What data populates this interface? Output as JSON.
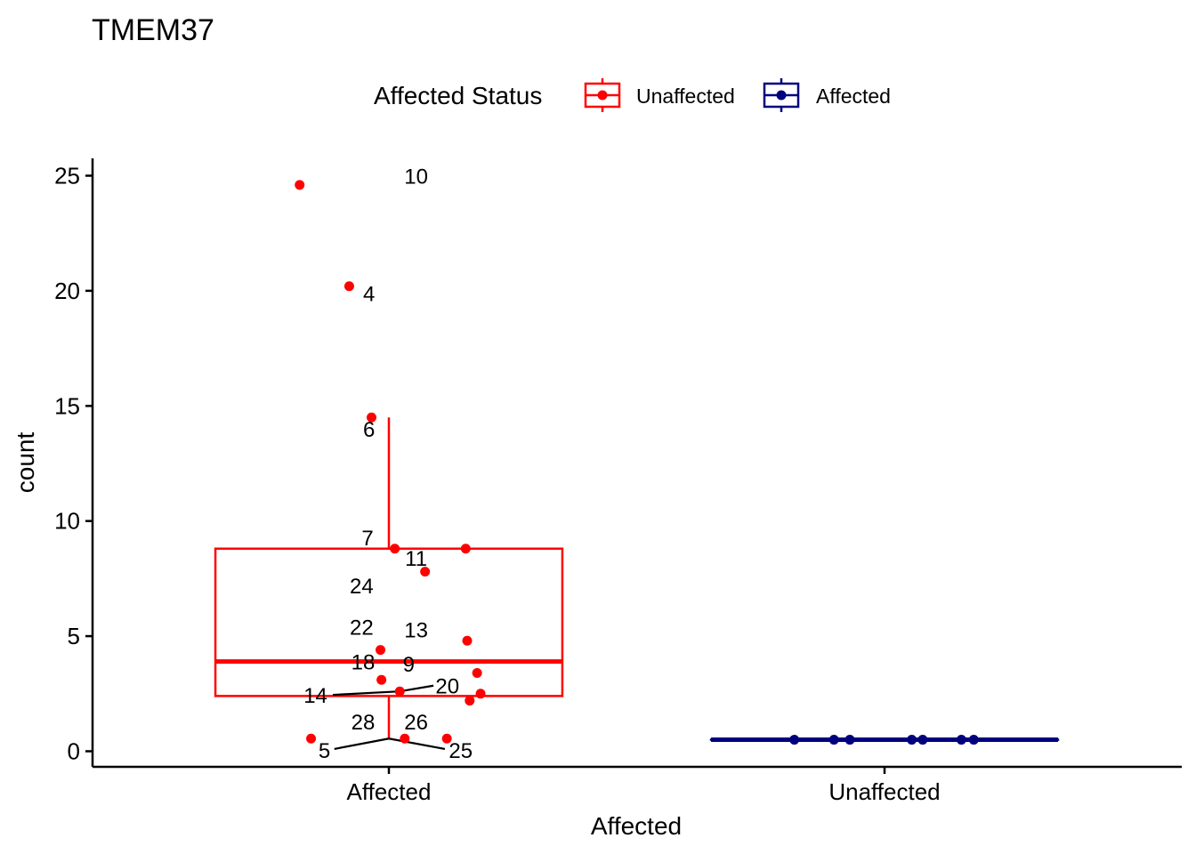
{
  "chart_data": {
    "type": "boxplot",
    "title": "TMEM37",
    "xlabel": "Affected",
    "ylabel": "count",
    "ylim": [
      -0.6,
      25.8
    ],
    "yticks": [
      0,
      5,
      10,
      15,
      20,
      25
    ],
    "categories": [
      "Affected",
      "Unaffected"
    ],
    "grid": false,
    "legend": {
      "title": "Affected Status",
      "position": "top",
      "entries": [
        {
          "name": "Unaffected",
          "color": "#ff0000"
        },
        {
          "name": "Affected",
          "color": "#00007f"
        }
      ]
    },
    "boxes": [
      {
        "category": "Affected",
        "color": "#ff0000",
        "q1": 2.4,
        "median": 3.9,
        "q3": 8.8,
        "whisker_low": 0.5,
        "whisker_high": 14.5
      },
      {
        "category": "Unaffected",
        "color": "#00007f",
        "q1": 0.5,
        "median": 0.5,
        "q3": 0.5,
        "whisker_low": 0.5,
        "whisker_high": 0.5
      }
    ],
    "points": [
      {
        "category": "Affected",
        "jitter": -0.18,
        "y": 24.6
      },
      {
        "category": "Affected",
        "jitter": -0.08,
        "y": 20.2
      },
      {
        "category": "Affected",
        "jitter": -0.035,
        "y": 14.5
      },
      {
        "category": "Affected",
        "jitter": 0.012,
        "y": 8.8
      },
      {
        "category": "Affected",
        "jitter": 0.155,
        "y": 8.8
      },
      {
        "category": "Affected",
        "jitter": 0.073,
        "y": 7.8
      },
      {
        "category": "Affected",
        "jitter": 0.158,
        "y": 4.8
      },
      {
        "category": "Affected",
        "jitter": -0.017,
        "y": 4.4
      },
      {
        "category": "Affected",
        "jitter": 0.178,
        "y": 3.4
      },
      {
        "category": "Affected",
        "jitter": -0.015,
        "y": 3.1
      },
      {
        "category": "Affected",
        "jitter": 0.022,
        "y": 2.6
      },
      {
        "category": "Affected",
        "jitter": 0.185,
        "y": 2.5
      },
      {
        "category": "Affected",
        "jitter": 0.163,
        "y": 2.2
      },
      {
        "category": "Affected",
        "jitter": -0.157,
        "y": 0.55
      },
      {
        "category": "Affected",
        "jitter": 0.032,
        "y": 0.55
      },
      {
        "category": "Affected",
        "jitter": 0.117,
        "y": 0.55
      },
      {
        "category": "Unaffected",
        "jitter": -0.182,
        "y": 0.5
      },
      {
        "category": "Unaffected",
        "jitter": -0.102,
        "y": 0.5
      },
      {
        "category": "Unaffected",
        "jitter": -0.07,
        "y": 0.5
      },
      {
        "category": "Unaffected",
        "jitter": 0.055,
        "y": 0.5
      },
      {
        "category": "Unaffected",
        "jitter": 0.077,
        "y": 0.5
      },
      {
        "category": "Unaffected",
        "jitter": 0.155,
        "y": 0.5
      },
      {
        "category": "Unaffected",
        "jitter": 0.18,
        "y": 0.5
      }
    ],
    "labels": [
      {
        "text": "10",
        "category": "Affected",
        "jitter": 0.055,
        "y": 25.0,
        "lx": 0.055,
        "ly": 25.0
      },
      {
        "text": "4",
        "category": "Affected",
        "jitter": -0.04,
        "y": 19.9,
        "lx": -0.04,
        "ly": 19.9
      },
      {
        "text": "6",
        "category": "Affected",
        "jitter": -0.04,
        "y": 14.0,
        "lx": -0.04,
        "ly": 14.0
      },
      {
        "text": "7",
        "category": "Affected",
        "jitter": -0.043,
        "y": 9.3,
        "lx": -0.043,
        "ly": 9.3
      },
      {
        "text": "11",
        "category": "Affected",
        "jitter": 0.055,
        "y": 8.4,
        "lx": 0.055,
        "ly": 8.4
      },
      {
        "text": "24",
        "category": "Affected",
        "jitter": -0.055,
        "y": 7.2,
        "lx": -0.055,
        "ly": 7.2
      },
      {
        "text": "22",
        "category": "Affected",
        "jitter": -0.055,
        "y": 5.4,
        "lx": -0.055,
        "ly": 5.4
      },
      {
        "text": "13",
        "category": "Affected",
        "jitter": 0.055,
        "y": 5.3,
        "lx": 0.055,
        "ly": 5.3
      },
      {
        "text": "18",
        "category": "Affected",
        "jitter": -0.052,
        "y": 3.9,
        "lx": -0.052,
        "ly": 3.9
      },
      {
        "text": "9",
        "category": "Affected",
        "jitter": 0.04,
        "y": 3.8,
        "lx": 0.04,
        "ly": 3.8
      },
      {
        "text": "20",
        "category": "Affected",
        "jitter": 0.118,
        "y": 2.85,
        "lx": 0.09,
        "ly": 2.85,
        "px": 0.022,
        "py": 2.6
      },
      {
        "text": "14",
        "category": "Affected",
        "jitter": -0.148,
        "y": 2.45,
        "lx": -0.113,
        "ly": 2.45,
        "px": 0.022,
        "py": 2.6
      },
      {
        "text": "28",
        "category": "Affected",
        "jitter": -0.052,
        "y": 1.3,
        "lx": -0.052,
        "ly": 1.3
      },
      {
        "text": "26",
        "category": "Affected",
        "jitter": 0.055,
        "y": 1.3,
        "lx": 0.055,
        "ly": 1.3
      },
      {
        "text": "5",
        "category": "Affected",
        "jitter": -0.13,
        "y": 0.05,
        "lx": -0.11,
        "ly": 0.1,
        "px": 0.0,
        "py": 0.55
      },
      {
        "text": "25",
        "category": "Affected",
        "jitter": 0.145,
        "y": 0.05,
        "lx": 0.113,
        "ly": 0.1,
        "px": 0.0,
        "py": 0.55
      }
    ]
  }
}
